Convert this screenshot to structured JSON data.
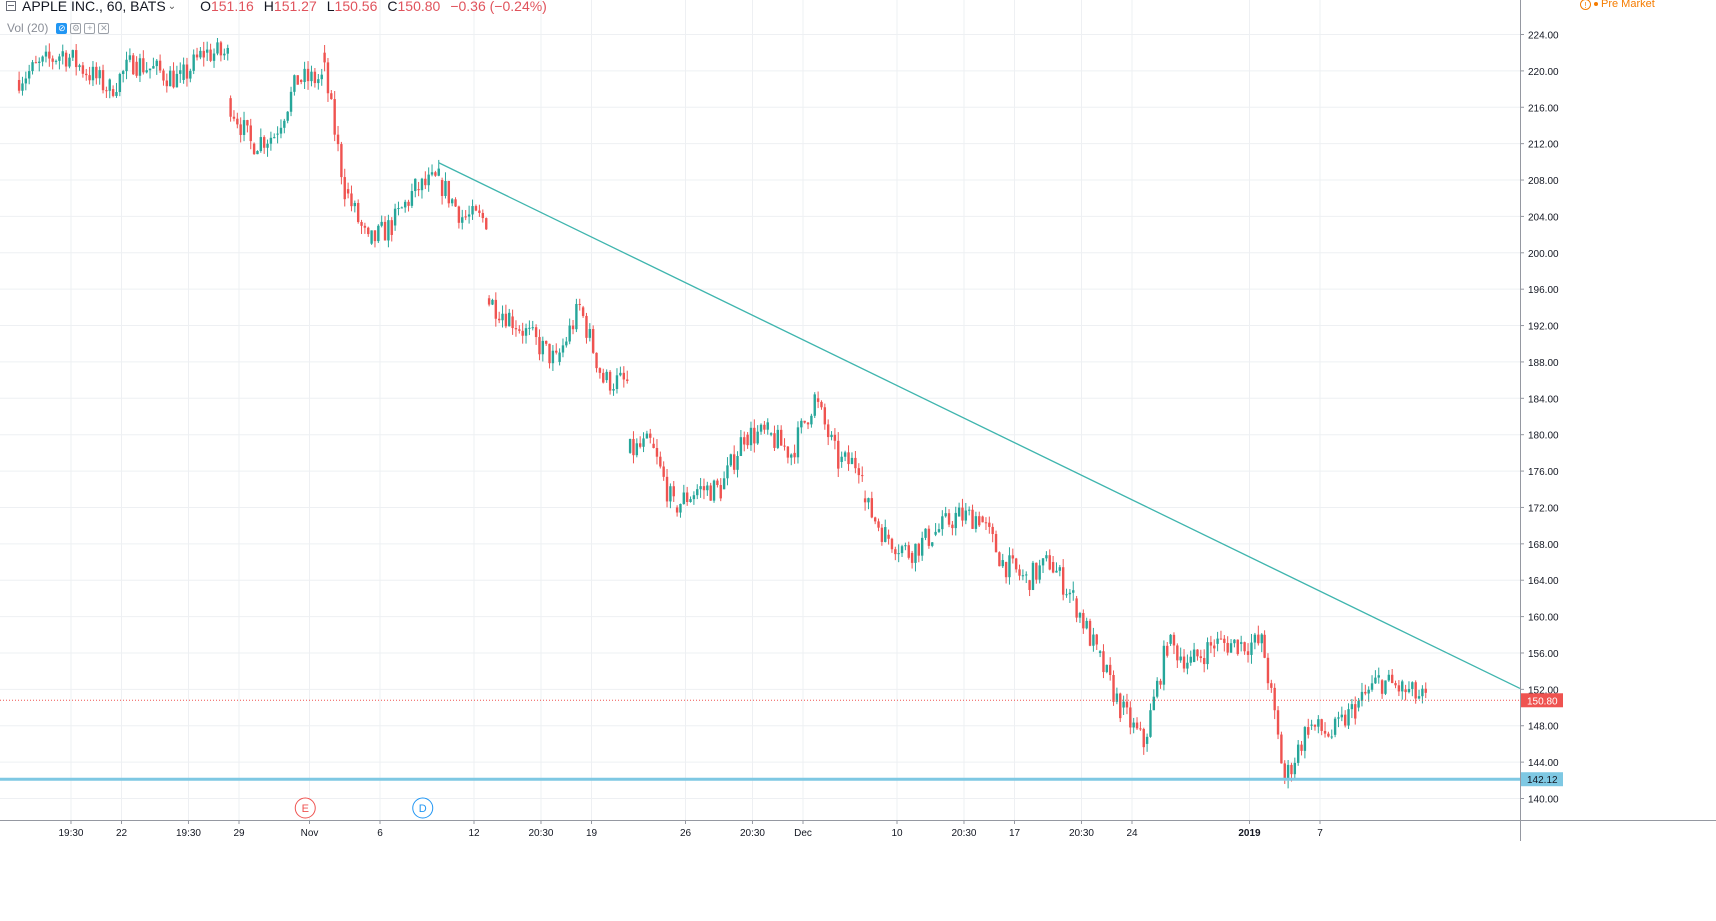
{
  "header": {
    "symbol_title": "APPLE INC., 60, BATS",
    "open_key": "O",
    "open_value": "151.16",
    "high_key": "H",
    "high_value": "151.27",
    "low_key": "L",
    "low_value": "150.56",
    "close_key": "C",
    "close_value": "150.80",
    "change": "−0.36 (−0.24%)",
    "indicator_label": "Vol (20)",
    "premarket_label": "Pre Market"
  },
  "colors": {
    "up": "#26a69a",
    "down": "#ef5350",
    "trendline": "#3fb5ae",
    "support_line": "#7ec8e3",
    "last_price_line": "#ef5350",
    "grid": "#eef0f3",
    "axis_text": "#131722"
  },
  "chart_data": {
    "type": "candlestick",
    "title": "APPLE INC., 60, BATS",
    "interval": "60",
    "ylim": [
      138.6,
      225.8
    ],
    "y_ticks": [
      "140.00",
      "144.00",
      "148.00",
      "152.00",
      "156.00",
      "160.00",
      "164.00",
      "168.00",
      "172.00",
      "176.00",
      "180.00",
      "184.00",
      "188.00",
      "192.00",
      "196.00",
      "200.00",
      "204.00",
      "208.00",
      "212.00",
      "216.00",
      "220.00",
      "224.00"
    ],
    "x_ticks": [
      "19:30",
      "22",
      "19:30",
      "29",
      "Nov",
      "6",
      "12",
      "20:30",
      "19",
      "26",
      "20:30",
      "Dec",
      "10",
      "20:30",
      "17",
      "20:30",
      "24",
      "2019",
      "7"
    ],
    "x_range": [
      "2018-10-15",
      "2019-01-11"
    ],
    "price_path": [
      {
        "date": "2018-10-15",
        "price": 219
      },
      {
        "date": "2018-10-17",
        "price": 222
      },
      {
        "date": "2018-10-19",
        "price": 218
      },
      {
        "date": "2018-10-22",
        "price": 221
      },
      {
        "date": "2018-10-24",
        "price": 219
      },
      {
        "date": "2018-10-25",
        "price": 222
      },
      {
        "date": "2018-10-26",
        "price": 217
      },
      {
        "date": "2018-10-29",
        "price": 212
      },
      {
        "date": "2018-10-30",
        "price": 213
      },
      {
        "date": "2018-10-31",
        "price": 219
      },
      {
        "date": "2018-11-01",
        "price": 222
      },
      {
        "date": "2018-11-02",
        "price": 207
      },
      {
        "date": "2018-11-05",
        "price": 201
      },
      {
        "date": "2018-11-06",
        "price": 203
      },
      {
        "date": "2018-11-07",
        "price": 207
      },
      {
        "date": "2018-11-08",
        "price": 208
      },
      {
        "date": "2018-11-09",
        "price": 204
      },
      {
        "date": "2018-11-12",
        "price": 195
      },
      {
        "date": "2018-11-13",
        "price": 193
      },
      {
        "date": "2018-11-15",
        "price": 188
      },
      {
        "date": "2018-11-16",
        "price": 194
      },
      {
        "date": "2018-11-19",
        "price": 186
      },
      {
        "date": "2018-11-20",
        "price": 178
      },
      {
        "date": "2018-11-21",
        "price": 179
      },
      {
        "date": "2018-11-23",
        "price": 172
      },
      {
        "date": "2018-11-26",
        "price": 174
      },
      {
        "date": "2018-11-27",
        "price": 174
      },
      {
        "date": "2018-11-28",
        "price": 180
      },
      {
        "date": "2018-11-29",
        "price": 180
      },
      {
        "date": "2018-11-30",
        "price": 178
      },
      {
        "date": "2018-12-03",
        "price": 184
      },
      {
        "date": "2018-12-04",
        "price": 177
      },
      {
        "date": "2018-12-06",
        "price": 173
      },
      {
        "date": "2018-12-07",
        "price": 169
      },
      {
        "date": "2018-12-10",
        "price": 167
      },
      {
        "date": "2018-12-11",
        "price": 169
      },
      {
        "date": "2018-12-12",
        "price": 171
      },
      {
        "date": "2018-12-13",
        "price": 171
      },
      {
        "date": "2018-12-14",
        "price": 166
      },
      {
        "date": "2018-12-17",
        "price": 164
      },
      {
        "date": "2018-12-18",
        "price": 166
      },
      {
        "date": "2018-12-19",
        "price": 162
      },
      {
        "date": "2018-12-20",
        "price": 156
      },
      {
        "date": "2018-12-21",
        "price": 150
      },
      {
        "date": "2018-12-24",
        "price": 146
      },
      {
        "date": "2018-12-26",
        "price": 157
      },
      {
        "date": "2018-12-27",
        "price": 155
      },
      {
        "date": "2018-12-28",
        "price": 157
      },
      {
        "date": "2018-12-31",
        "price": 157
      },
      {
        "date": "2019-01-02",
        "price": 158
      },
      {
        "date": "2019-01-03",
        "price": 142
      },
      {
        "date": "2019-01-04",
        "price": 148
      },
      {
        "date": "2019-01-07",
        "price": 147
      },
      {
        "date": "2019-01-08",
        "price": 150
      },
      {
        "date": "2019-01-09",
        "price": 153
      },
      {
        "date": "2019-01-10",
        "price": 152
      },
      {
        "date": "2019-01-11",
        "price": 150.8
      }
    ],
    "gaps_after": [
      "2018-10-25",
      "2018-10-31",
      "2018-11-09",
      "2018-11-19",
      "2018-12-04",
      "2018-12-31"
    ],
    "trendline": {
      "start": {
        "date": "2018-11-08",
        "price": 209.9
      },
      "end": {
        "date": "2019-01-11",
        "price": 152.1
      }
    },
    "horizontal_levels": [
      {
        "price": 142.12,
        "label": "142.12"
      }
    ],
    "last_price": {
      "price": 150.8,
      "label": "150.80"
    },
    "events": [
      {
        "date": "2018-11-01",
        "label": "E",
        "kind": "earnings"
      },
      {
        "date": "2018-11-08",
        "label": "D",
        "kind": "dividend"
      }
    ],
    "grid": true
  }
}
